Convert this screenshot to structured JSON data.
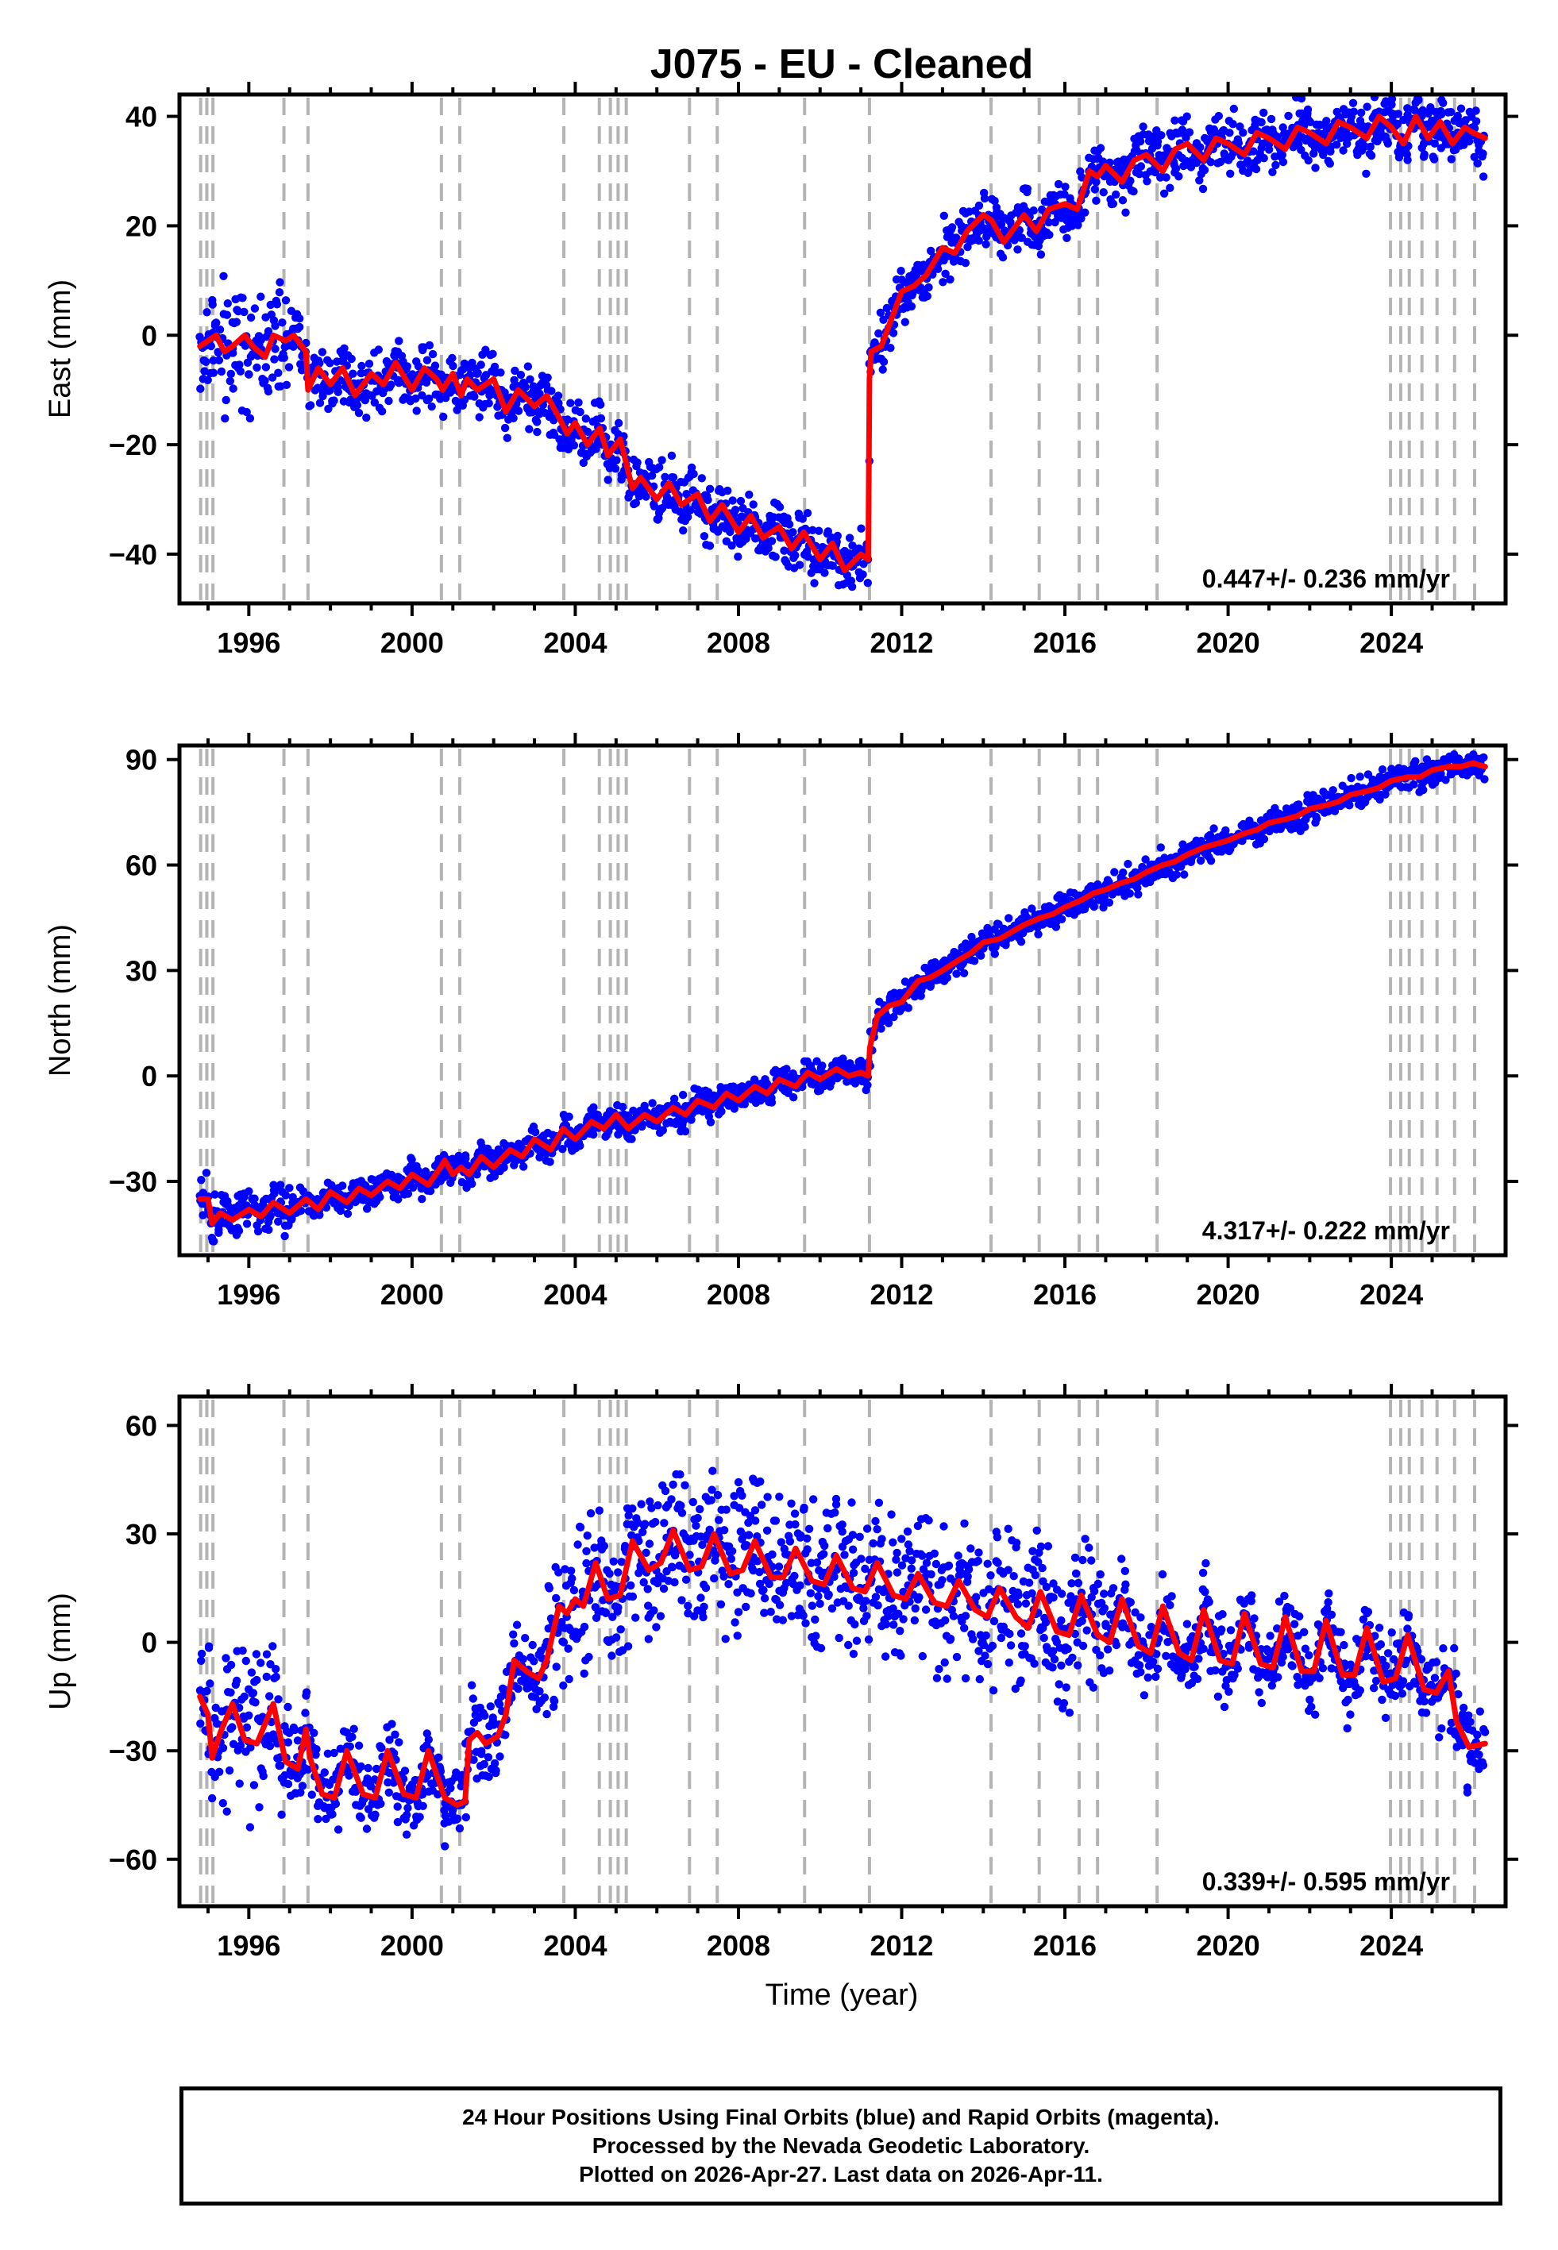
{
  "title": "J075  - EU - Cleaned",
  "colors": {
    "points": "#0000ff",
    "model": "#ff0000",
    "event_lines": "#b4b4b4",
    "frame": "#000000"
  },
  "chart_data": [
    {
      "type": "scatter",
      "name": "east",
      "ylabel": "East (mm)",
      "xlabel": "",
      "xlim": [
        1994.3,
        2026.8
      ],
      "ylim": [
        -49,
        44
      ],
      "yticks": [
        40,
        20,
        0,
        -20,
        -40
      ],
      "ytick_labels": [
        "40",
        "20",
        "0",
        "−20",
        "−40"
      ],
      "xticks": [
        1996,
        2000,
        2004,
        2008,
        2012,
        2016,
        2020,
        2024
      ],
      "rate": "0.447+/- 0.236 mm/yr",
      "series": [
        {
          "name": "model",
          "x": [
            1994.8,
            1995.0,
            1995.2,
            1995.4,
            1995.6,
            1995.9,
            1996.1,
            1996.4,
            1996.6,
            1996.9,
            1997.1,
            1997.4,
            1997.45,
            1997.7,
            1998.0,
            1998.3,
            1998.6,
            1999.0,
            1999.3,
            1999.6,
            2000.0,
            2000.3,
            2000.6,
            2000.75,
            2001.0,
            2001.2,
            2001.35,
            2001.6,
            2002.0,
            2002.3,
            2002.6,
            2003.0,
            2003.3,
            2003.6,
            2003.8,
            2004.0,
            2004.3,
            2004.6,
            2004.8,
            2005.0,
            2005.1,
            2005.4,
            2005.6,
            2006.0,
            2006.3,
            2006.6,
            2007.0,
            2007.3,
            2007.6,
            2008.0,
            2008.3,
            2008.6,
            2009.0,
            2009.3,
            2009.6,
            2010.0,
            2010.3,
            2010.6,
            2011.0,
            2011.18,
            2011.21,
            2011.25,
            2011.5,
            2011.8,
            2012.0,
            2012.3,
            2012.6,
            2013.0,
            2013.3,
            2013.6,
            2014.0,
            2014.2,
            2014.5,
            2015.0,
            2015.3,
            2015.6,
            2016.0,
            2016.3,
            2016.6,
            2016.8,
            2017.0,
            2017.4,
            2017.7,
            2018.0,
            2018.4,
            2018.7,
            2019.0,
            2019.4,
            2019.7,
            2020.0,
            2020.4,
            2020.7,
            2021.0,
            2021.4,
            2021.7,
            2022.0,
            2022.4,
            2022.7,
            2023.0,
            2023.4,
            2023.7,
            2024.0,
            2024.3,
            2024.6,
            2024.9,
            2025.2,
            2025.5,
            2025.8,
            2026.0,
            2026.3
          ],
          "y": [
            -2,
            -1,
            0,
            -3,
            -2,
            0,
            -2,
            -4,
            0,
            -1,
            0,
            -3,
            -10,
            -6,
            -9,
            -6,
            -11,
            -7,
            -9,
            -5,
            -10,
            -6,
            -8,
            -10,
            -7,
            -11,
            -8,
            -10,
            -8,
            -14,
            -10,
            -13,
            -11,
            -15,
            -18,
            -16,
            -20,
            -17,
            -22,
            -20,
            -19,
            -28,
            -26,
            -30,
            -27,
            -31,
            -29,
            -34,
            -31,
            -36,
            -33,
            -37,
            -35,
            -39,
            -36,
            -41,
            -38,
            -43,
            -40,
            -41,
            -8,
            -3,
            -2,
            4,
            8,
            9,
            11,
            16,
            15,
            19,
            22,
            21,
            17,
            22,
            19,
            23,
            24,
            23,
            30,
            29,
            31,
            28,
            32,
            33,
            30,
            34,
            35,
            32,
            36,
            35,
            33,
            37,
            36,
            34,
            38,
            37,
            35,
            39,
            38,
            36,
            40,
            38,
            35,
            40,
            36,
            39,
            35,
            38,
            37,
            36
          ]
        }
      ]
    },
    {
      "type": "scatter",
      "name": "north",
      "ylabel": "North (mm)",
      "xlabel": "",
      "xlim": [
        1994.3,
        2026.8
      ],
      "ylim": [
        -51,
        94
      ],
      "yticks": [
        90,
        60,
        30,
        0,
        -30
      ],
      "ytick_labels": [
        "90",
        "60",
        "30",
        "0",
        "−30"
      ],
      "xticks": [
        1996,
        2000,
        2004,
        2008,
        2012,
        2016,
        2020,
        2024
      ],
      "rate": "4.317+/- 0.222 mm/yr",
      "series": [
        {
          "name": "model",
          "x": [
            1994.8,
            1995.0,
            1995.1,
            1995.3,
            1995.6,
            1996.0,
            1996.3,
            1996.6,
            1997.0,
            1997.4,
            1997.7,
            1998.0,
            1998.4,
            1998.7,
            1999.0,
            1999.4,
            1999.7,
            2000.0,
            2000.4,
            2000.7,
            2000.8,
            2001.0,
            2001.2,
            2001.4,
            2001.7,
            2002.0,
            2002.4,
            2002.7,
            2003.0,
            2003.4,
            2003.7,
            2004.0,
            2004.4,
            2004.7,
            2005.0,
            2005.3,
            2005.7,
            2006.0,
            2006.4,
            2006.7,
            2007.0,
            2007.4,
            2007.7,
            2008.0,
            2008.4,
            2008.7,
            2009.0,
            2009.4,
            2009.7,
            2010.0,
            2010.4,
            2010.7,
            2011.0,
            2011.18,
            2011.22,
            2011.4,
            2011.7,
            2012.0,
            2012.4,
            2012.7,
            2013.0,
            2013.4,
            2013.7,
            2014.0,
            2014.4,
            2014.7,
            2015.0,
            2015.4,
            2015.7,
            2016.0,
            2016.4,
            2016.7,
            2017.0,
            2017.4,
            2017.7,
            2018.0,
            2018.4,
            2018.7,
            2019.0,
            2019.4,
            2019.7,
            2020.0,
            2020.4,
            2020.7,
            2021.0,
            2021.4,
            2021.7,
            2022.0,
            2022.4,
            2022.7,
            2023.0,
            2023.4,
            2023.7,
            2024.0,
            2024.4,
            2024.7,
            2025.0,
            2025.4,
            2025.7,
            2026.0,
            2026.3
          ],
          "y": [
            -35,
            -35,
            -42,
            -39,
            -41,
            -38,
            -40,
            -36,
            -39,
            -35,
            -38,
            -33,
            -36,
            -32,
            -34,
            -30,
            -32,
            -28,
            -31,
            -26,
            -24,
            -28,
            -26,
            -28,
            -23,
            -26,
            -21,
            -23,
            -18,
            -21,
            -15,
            -18,
            -13,
            -15,
            -11,
            -15,
            -11,
            -13,
            -9,
            -11,
            -7,
            -9,
            -5,
            -7,
            -3,
            -5,
            -1,
            -3,
            1,
            -1,
            2,
            0,
            1,
            0,
            8,
            17,
            20,
            21,
            27,
            28,
            30,
            33,
            35,
            38,
            39,
            41,
            43,
            45,
            46,
            48,
            50,
            52,
            53,
            55,
            56,
            58,
            60,
            61,
            63,
            65,
            66,
            67,
            69,
            70,
            72,
            73,
            74,
            76,
            77,
            78,
            80,
            81,
            82,
            84,
            85,
            85,
            87,
            88,
            88,
            89,
            88
          ]
        }
      ]
    },
    {
      "type": "scatter",
      "name": "up",
      "ylabel": "Up (mm)",
      "xlabel": "Time (year)",
      "xlim": [
        1994.3,
        2026.8
      ],
      "ylim": [
        -73,
        68
      ],
      "yticks": [
        60,
        30,
        0,
        -30,
        -60
      ],
      "ytick_labels": [
        "60",
        "30",
        "0",
        "−30",
        "−60"
      ],
      "xticks": [
        1996,
        2000,
        2004,
        2008,
        2012,
        2016,
        2020,
        2024
      ],
      "rate": "0.339+/- 0.595 mm/yr",
      "series": [
        {
          "name": "model",
          "x": [
            1994.8,
            1995.0,
            1995.1,
            1995.3,
            1995.6,
            1995.9,
            1996.2,
            1996.6,
            1996.9,
            1997.2,
            1997.4,
            1997.5,
            1997.8,
            1998.1,
            1998.4,
            1998.8,
            1999.1,
            1999.4,
            1999.8,
            2000.1,
            2000.4,
            2000.8,
            2001.1,
            2001.3,
            2001.4,
            2001.6,
            2001.8,
            2002.1,
            2002.3,
            2002.5,
            2002.8,
            2003.1,
            2003.3,
            2003.6,
            2003.8,
            2004.0,
            2004.2,
            2004.5,
            2004.8,
            2005.1,
            2005.4,
            2005.8,
            2006.1,
            2006.4,
            2006.8,
            2007.1,
            2007.4,
            2007.8,
            2008.1,
            2008.4,
            2008.8,
            2009.1,
            2009.4,
            2009.8,
            2010.1,
            2010.4,
            2010.8,
            2011.1,
            2011.4,
            2011.8,
            2012.1,
            2012.4,
            2012.8,
            2013.1,
            2013.4,
            2013.8,
            2014.1,
            2014.4,
            2014.8,
            2015.1,
            2015.4,
            2015.8,
            2016.1,
            2016.4,
            2016.8,
            2017.1,
            2017.4,
            2017.8,
            2018.1,
            2018.4,
            2018.8,
            2019.1,
            2019.4,
            2019.8,
            2020.1,
            2020.4,
            2020.8,
            2021.1,
            2021.4,
            2021.8,
            2022.1,
            2022.4,
            2022.8,
            2023.1,
            2023.4,
            2023.8,
            2024.1,
            2024.4,
            2024.8,
            2025.1,
            2025.4,
            2025.6,
            2025.9,
            2026.3
          ],
          "y": [
            -15,
            -20,
            -32,
            -25,
            -17,
            -27,
            -28,
            -17,
            -33,
            -35,
            -24,
            -32,
            -42,
            -43,
            -30,
            -42,
            -43,
            -30,
            -42,
            -43,
            -30,
            -43,
            -45,
            -44,
            -27,
            -25,
            -28,
            -26,
            -20,
            -5,
            -8,
            -10,
            -5,
            10,
            8,
            12,
            10,
            22,
            12,
            13,
            28,
            20,
            22,
            31,
            20,
            21,
            30,
            19,
            20,
            28,
            18,
            18,
            26,
            17,
            16,
            24,
            15,
            14,
            22,
            13,
            12,
            19,
            11,
            10,
            17,
            9,
            7,
            15,
            7,
            4,
            14,
            3,
            2,
            13,
            2,
            0,
            12,
            -1,
            -3,
            10,
            -3,
            -5,
            9,
            -5,
            -6,
            8,
            -6,
            -7,
            7,
            -8,
            -8,
            6,
            -9,
            -9,
            4,
            -11,
            -10,
            2,
            -13,
            -14,
            -8,
            -22,
            -29,
            -28
          ]
        }
      ]
    }
  ],
  "footer": {
    "line1": "24 Hour Positions Using Final Orbits (blue) and Rapid Orbits (magenta).",
    "line2": "Processed by the Nevada Geodetic Laboratory.",
    "line3": "Plotted on 2026-Apr-27. Last data on 2026-Apr-11."
  }
}
